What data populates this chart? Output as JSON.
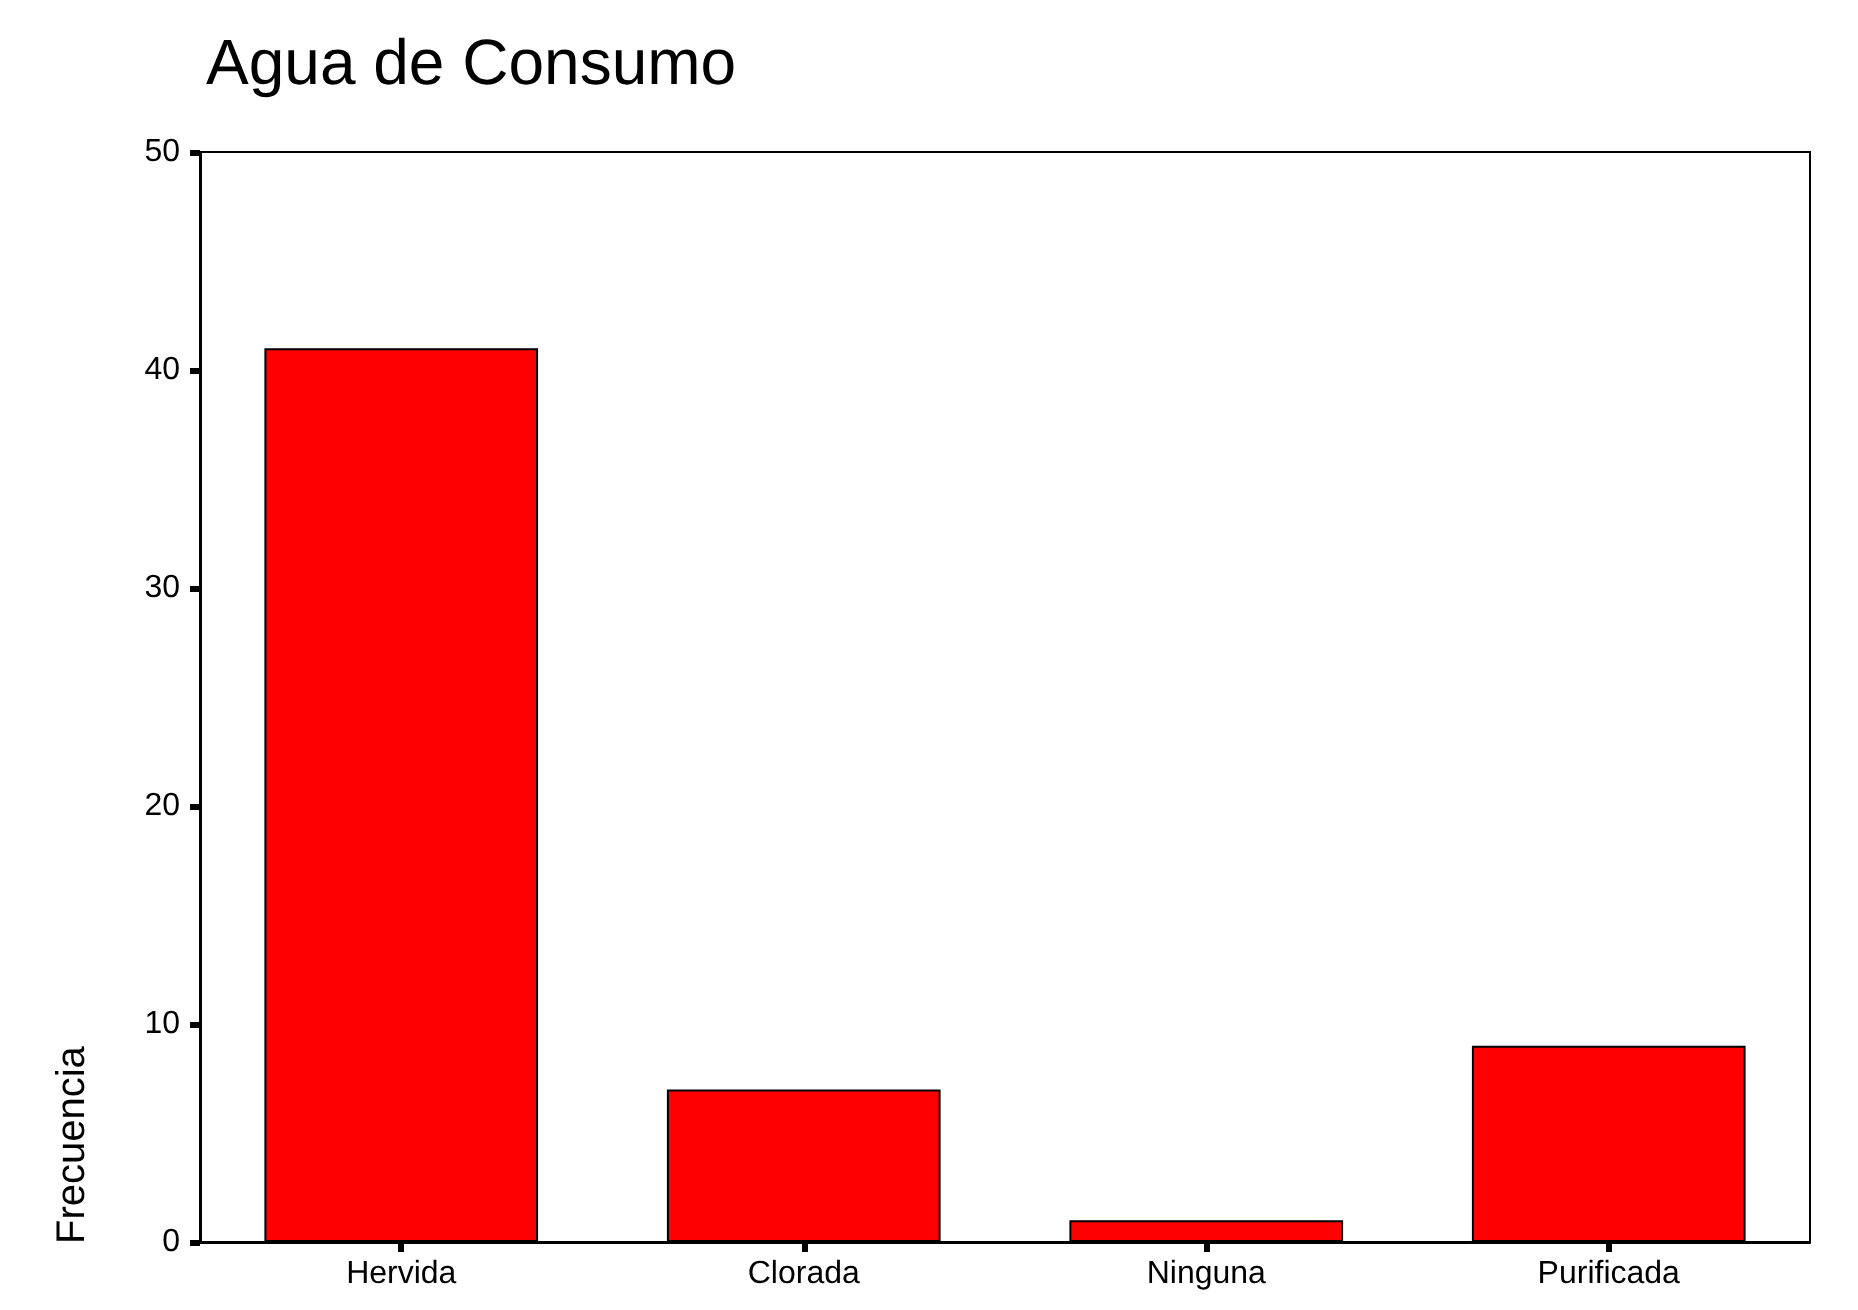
{
  "chart_data": {
    "type": "bar",
    "title": "Agua de Consumo",
    "ylabel": "Frecuencia",
    "categories": [
      "Hervida",
      "Clorada",
      "Ninguna",
      "Purificada"
    ],
    "values": [
      41,
      7,
      1,
      9
    ],
    "color": "#ff0000",
    "ylim": [
      0,
      50
    ],
    "yticks": [
      0,
      10,
      20,
      30,
      40,
      50
    ]
  }
}
